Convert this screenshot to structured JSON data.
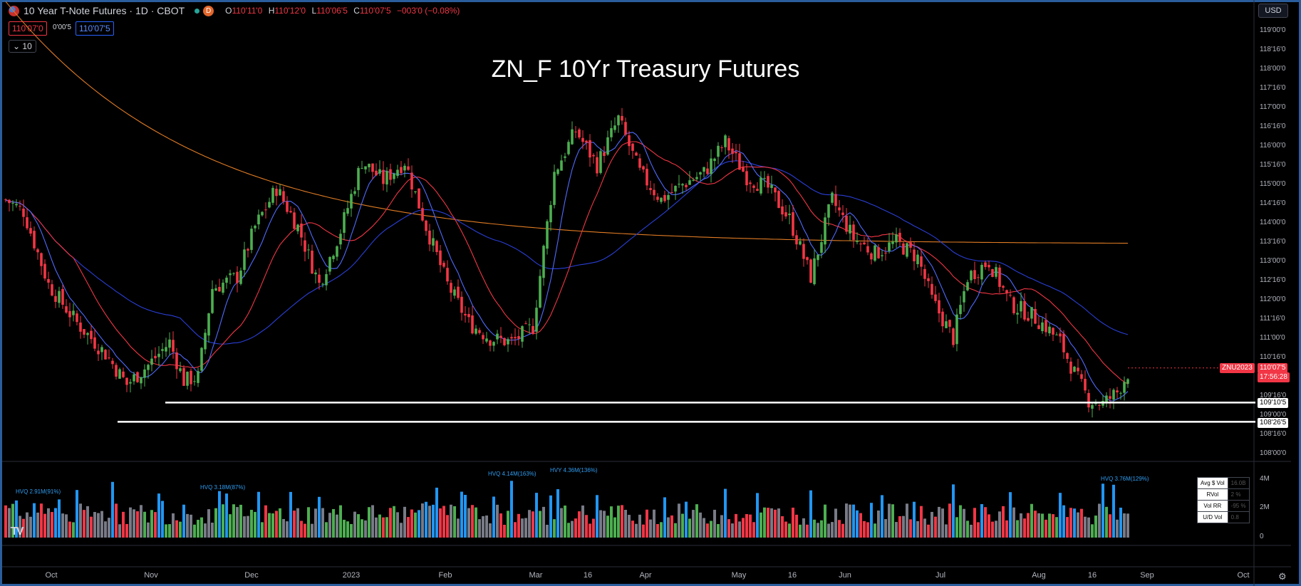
{
  "header": {
    "symbol_title": "10 Year T-Note Futures · 1D · CBOT",
    "badge": "D",
    "open_label": "O",
    "open": "110'11'0",
    "high_label": "H",
    "high": "110'12'0",
    "low_label": "L",
    "low": "110'06'5",
    "close_label": "C",
    "close": "110'07'5",
    "change": "−003'0 (−0.08%)",
    "bid": "110'07'0",
    "spread": "0'00'5",
    "ask": "110'07'5",
    "indicator_count": "10"
  },
  "currency": "USD",
  "colors": {
    "up": "#4caf50",
    "down": "#f23645",
    "volume_high": "#2196f3",
    "volume_neutral": "#787b86",
    "ma_fast": "#3d5afe",
    "ma_mid": "#f23645",
    "ma_slow": "#2a3fd6",
    "ma_long": "#e07b24",
    "support": "#ffffff",
    "accent": "#2a5d9c"
  },
  "chart_data": {
    "type": "candlestick",
    "title": "ZN_F 10Yr Treasury Futures",
    "x_labels": [
      "Oct",
      "Nov",
      "Dec",
      "2023",
      "Feb",
      "Mar",
      "16",
      "Apr",
      "May",
      "16",
      "Jun",
      "Jul",
      "Aug",
      "16",
      "Sep",
      "Oct"
    ],
    "y_tick_labels": [
      "119'00'0",
      "118'16'0",
      "118'00'0",
      "117'16'0",
      "117'00'0",
      "116'16'0",
      "116'00'0",
      "115'16'0",
      "115'00'0",
      "114'16'0",
      "114'00'0",
      "113'16'0",
      "113'00'0",
      "112'16'0",
      "112'00'0",
      "111'16'0",
      "111'00'0",
      "110'16'0",
      "109'16'0",
      "109'00'0",
      "108'16'0",
      "108'00'0"
    ],
    "ylim": [
      107.95,
      119.05
    ],
    "close_path_anchors": [
      [
        0,
        114.6
      ],
      [
        5,
        114.3
      ],
      [
        12,
        112.4
      ],
      [
        20,
        111.4
      ],
      [
        28,
        110.6
      ],
      [
        34,
        109.8
      ],
      [
        40,
        110.3
      ],
      [
        46,
        110.9
      ],
      [
        50,
        109.9
      ],
      [
        54,
        110.0
      ],
      [
        58,
        112.3
      ],
      [
        65,
        112.6
      ],
      [
        70,
        113.9
      ],
      [
        76,
        114.9
      ],
      [
        82,
        113.9
      ],
      [
        88,
        112.4
      ],
      [
        94,
        113.8
      ],
      [
        100,
        115.6
      ],
      [
        106,
        115.1
      ],
      [
        112,
        115.6
      ],
      [
        118,
        113.9
      ],
      [
        124,
        112.4
      ],
      [
        130,
        111.4
      ],
      [
        136,
        111.0
      ],
      [
        142,
        110.9
      ],
      [
        148,
        111.3
      ],
      [
        154,
        115.3
      ],
      [
        160,
        116.4
      ],
      [
        166,
        115.5
      ],
      [
        172,
        116.7
      ],
      [
        178,
        115.3
      ],
      [
        184,
        114.6
      ],
      [
        190,
        115.0
      ],
      [
        196,
        115.3
      ],
      [
        202,
        116.1
      ],
      [
        208,
        115.2
      ],
      [
        214,
        114.9
      ],
      [
        220,
        114.1
      ],
      [
        226,
        112.6
      ],
      [
        232,
        114.6
      ],
      [
        238,
        113.6
      ],
      [
        244,
        113.2
      ],
      [
        250,
        113.5
      ],
      [
        256,
        113.1
      ],
      [
        260,
        112.0
      ],
      [
        266,
        111.0
      ],
      [
        270,
        112.6
      ],
      [
        276,
        113.0
      ],
      [
        282,
        111.9
      ],
      [
        288,
        111.6
      ],
      [
        292,
        111.3
      ],
      [
        296,
        110.9
      ],
      [
        300,
        110.1
      ],
      [
        304,
        109.4
      ],
      [
        308,
        109.3
      ],
      [
        312,
        109.6
      ],
      [
        315,
        110.1
      ]
    ],
    "last_bar_close": "110'07'5",
    "moving_averages": [
      "fast",
      "mid",
      "slow",
      "long"
    ],
    "support_levels": [
      {
        "label": "109'10'5",
        "value": 109.33
      },
      {
        "label": "108'26'5",
        "value": 108.83
      }
    ],
    "last_price_tag": {
      "symbol": "ZNU2023",
      "price": "110'07'5",
      "countdown": "17:56:28"
    },
    "volume": {
      "y_tick_labels": [
        "4M",
        "2M",
        "0"
      ],
      "annotations": [
        "HVQ 2.91M(91%)",
        "HVQ 3.18M(87%)",
        "HVQ 4.14M(163%)",
        "HVY 4.36M(136%)",
        "HVQ 3.76M(129%)"
      ],
      "table": [
        {
          "key": "Avg $ Vol",
          "value": "16.0B"
        },
        {
          "key": "RVol",
          "value": "2 %"
        },
        {
          "key": "Vol RR",
          "value": "-95 %"
        },
        {
          "key": "U/D Vol",
          "value": "0.8"
        }
      ]
    }
  }
}
